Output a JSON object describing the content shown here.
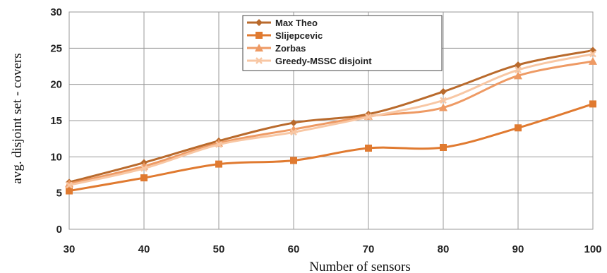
{
  "chart_data": {
    "type": "line",
    "xlabel": "Number of sensors",
    "ylabel": "avg.  disjoint  set - covers",
    "x": [
      30,
      40,
      50,
      60,
      70,
      80,
      90,
      100
    ],
    "xlim": [
      30,
      100
    ],
    "ylim": [
      0,
      30
    ],
    "x_ticks": [
      "30",
      "40",
      "50",
      "60",
      "70",
      "80",
      "90",
      "100"
    ],
    "y_ticks": [
      "0",
      "5",
      "10",
      "15",
      "20",
      "25",
      "30"
    ],
    "grid": true,
    "legend_position": "top-center",
    "series": [
      {
        "name": "Max Theo",
        "marker": "diamond",
        "color": "#b96a2c",
        "values": [
          6.5,
          9.2,
          12.2,
          14.7,
          15.9,
          19.0,
          22.7,
          24.7
        ]
      },
      {
        "name": "Slijepcevic",
        "marker": "square",
        "color": "#e07a30",
        "values": [
          5.3,
          7.1,
          9.0,
          9.5,
          11.2,
          11.3,
          14.0,
          17.3
        ]
      },
      {
        "name": "Zorbas",
        "marker": "triangle",
        "color": "#ee9a64",
        "values": [
          6.3,
          8.7,
          11.9,
          13.8,
          15.6,
          16.8,
          21.2,
          23.2
        ]
      },
      {
        "name": "Greedy-MSSC disjoint",
        "marker": "x",
        "color": "#f8c7a4",
        "values": [
          6.1,
          8.4,
          11.7,
          13.4,
          15.5,
          17.8,
          22.0,
          24.2
        ]
      }
    ]
  }
}
